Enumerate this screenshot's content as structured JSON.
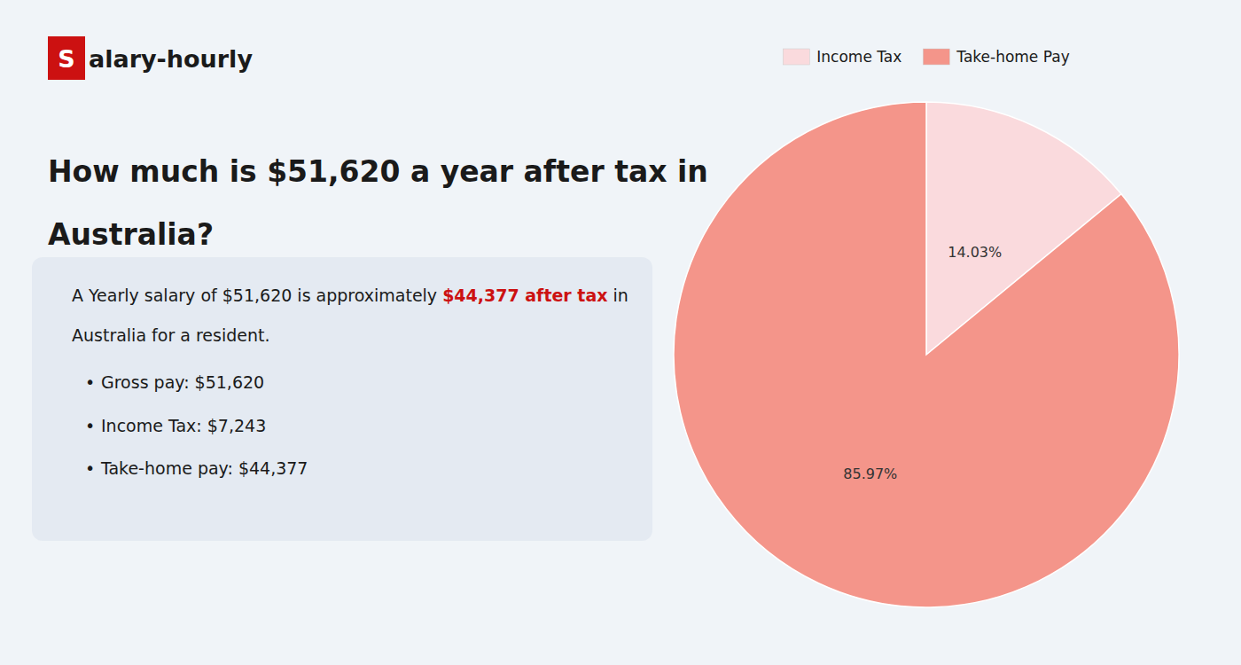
{
  "chart_data": {
    "type": "pie",
    "title": [
      "How much is $51,620 a year after tax in",
      "Australia?"
    ],
    "annotations": [
      {
        "text": "S",
        "color": "#cc1111"
      },
      {
        "text": "alary-hourly"
      },
      {
        "text": "A Yearly salary of $51,620 is approximately "
      },
      {
        "text": "$44,377 after tax",
        "color": "#cc1111"
      },
      {
        "text": " in"
      },
      {
        "text": "Australia for a resident."
      },
      {
        "text": "•"
      },
      {
        "text": "Gross pay: $51,620"
      },
      {
        "text": "•"
      },
      {
        "text": "Income Tax: $7,243"
      },
      {
        "text": "•"
      },
      {
        "text": "Take-home pay: $44,377"
      }
    ],
    "categories": [
      "Income Tax",
      "Take-home Pay"
    ],
    "values": [
      14.03,
      85.97
    ],
    "value_labels": [
      "14.03%",
      "85.97%"
    ],
    "colors": [
      "#fadadd",
      "#f4958a"
    ],
    "data_labels": true,
    "legend": "top"
  }
}
